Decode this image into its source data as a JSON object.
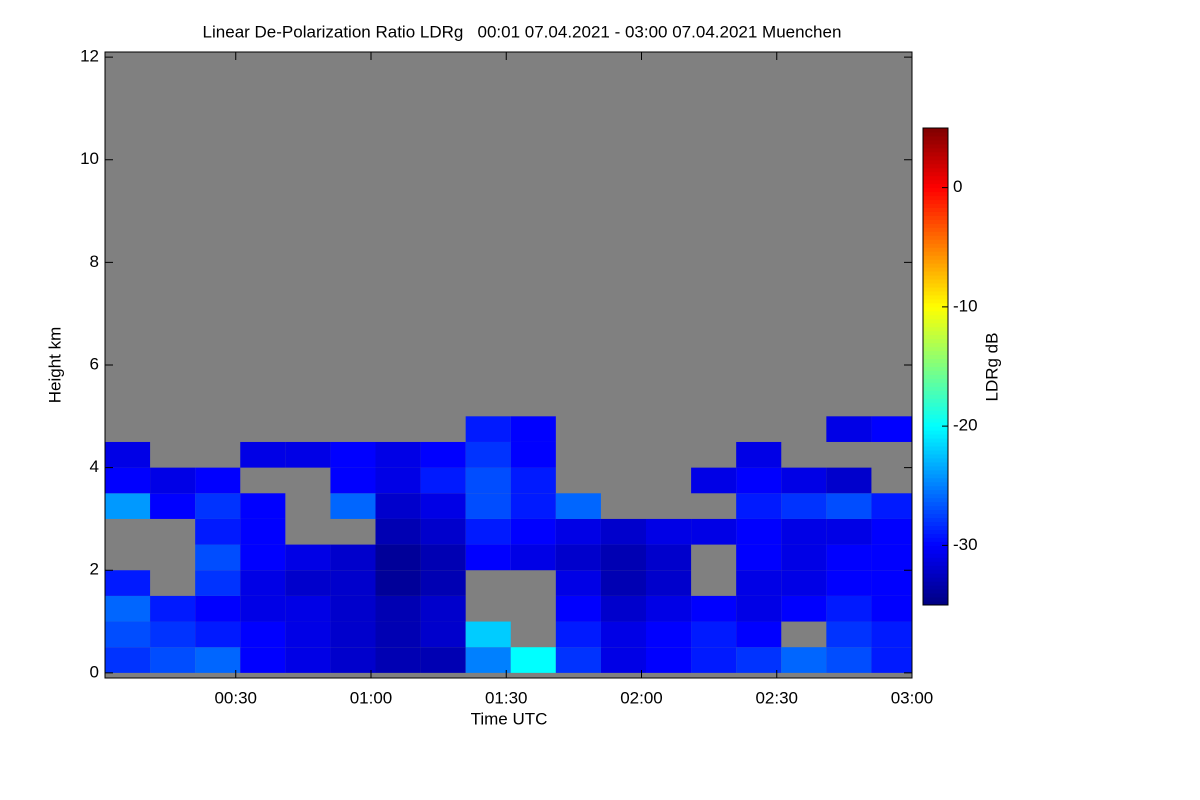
{
  "chart_data": {
    "type": "heatmap",
    "title": "Linear De-Polarization Ratio LDRg   00:01 07.04.2021 - 03:00 07.04.2021 Muenchen",
    "xlabel": "Time UTC",
    "ylabel": "Height km",
    "colorbar_label": "LDRg dB",
    "xlim": [
      1,
      180
    ],
    "ylim": [
      -0.1,
      12.1
    ],
    "clim": [
      -35,
      5
    ],
    "xticks": [
      {
        "value": 30,
        "label": "00:30"
      },
      {
        "value": 60,
        "label": "01:00"
      },
      {
        "value": 90,
        "label": "01:30"
      },
      {
        "value": 120,
        "label": "02:00"
      },
      {
        "value": 150,
        "label": "02:30"
      },
      {
        "value": 180,
        "label": "03:00"
      }
    ],
    "yticks": [
      0,
      2,
      4,
      6,
      8,
      10,
      12
    ],
    "cticks": [
      0,
      -10,
      -20,
      -30
    ],
    "colormap": "jet",
    "no_data_color": "#808080",
    "x": [
      6,
      16,
      26,
      36,
      46,
      56,
      66,
      76,
      86,
      96,
      106,
      116,
      126,
      136,
      146,
      156,
      166,
      176
    ],
    "y": [
      0.25,
      0.75,
      1.25,
      1.75,
      2.25,
      2.75,
      3.25,
      3.75,
      4.25,
      4.75
    ],
    "z": [
      [
        -28,
        -27,
        -26,
        -30,
        -31,
        -32,
        -33,
        -33,
        -25,
        -20,
        -28,
        -31,
        -30,
        -29,
        -28,
        -26,
        -27,
        -29
      ],
      [
        -27,
        -28,
        -29,
        -30,
        -31,
        -32,
        -33,
        -32,
        -22,
        null,
        -29,
        -31,
        -30,
        -29,
        -30,
        null,
        -28,
        -29
      ],
      [
        -26,
        -29,
        -30,
        -31,
        -31,
        -32,
        -33,
        -32,
        null,
        null,
        -30,
        -32,
        -31,
        -30,
        -31,
        -30,
        -29,
        -30
      ],
      [
        -29,
        null,
        -28,
        -31,
        -32,
        -32,
        -34,
        -33,
        null,
        null,
        -31,
        -33,
        -32,
        null,
        -31,
        -31,
        -30,
        -30
      ],
      [
        null,
        null,
        -27,
        -30,
        -31,
        -32,
        -34,
        -33,
        -30,
        -31,
        -32,
        -33,
        -32,
        null,
        -30,
        -31,
        -30,
        -30
      ],
      [
        null,
        null,
        -29,
        -30,
        null,
        null,
        -33,
        -32,
        -29,
        -30,
        -31,
        -32,
        -31,
        -31,
        -30,
        -31,
        -31,
        -30
      ],
      [
        -24,
        -30,
        -28,
        -30,
        null,
        -26,
        -32,
        -31,
        -27,
        -29,
        -26,
        null,
        null,
        null,
        -29,
        -28,
        -27,
        -29
      ],
      [
        -30,
        -31,
        -30,
        null,
        null,
        -30,
        -31,
        -29,
        -27,
        -29,
        null,
        null,
        null,
        -31,
        -30,
        -31,
        -32,
        null
      ],
      [
        -31,
        null,
        null,
        -31,
        -31,
        -30,
        -31,
        -30,
        -28,
        -30,
        null,
        null,
        null,
        null,
        -31,
        null,
        null,
        null
      ],
      [
        null,
        null,
        null,
        null,
        null,
        null,
        null,
        null,
        -29,
        -30,
        null,
        null,
        null,
        null,
        null,
        null,
        -31,
        -30
      ]
    ]
  }
}
